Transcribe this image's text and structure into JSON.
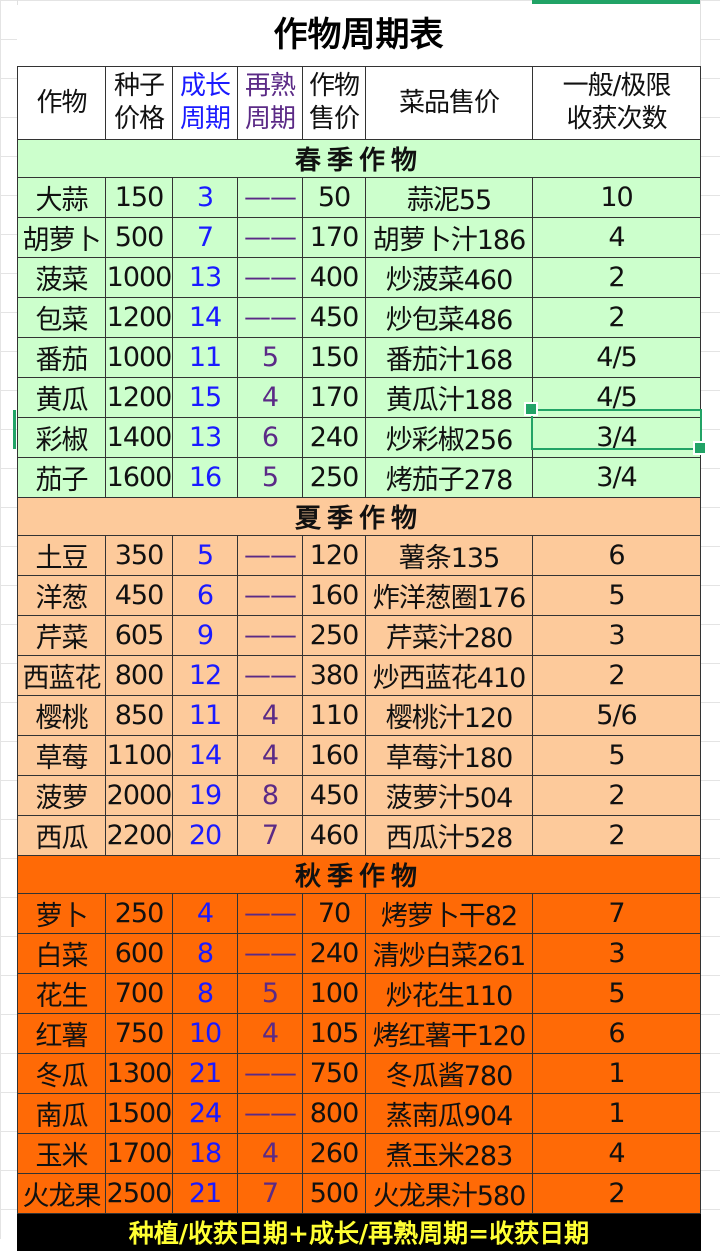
{
  "title": "作物周期表",
  "headers": [
    {
      "lines": [
        "作物"
      ],
      "color": "#111111"
    },
    {
      "lines": [
        "种子",
        "价格"
      ],
      "color": "#111111"
    },
    {
      "lines": [
        "成长",
        "周期"
      ],
      "color": "#1a1aff"
    },
    {
      "lines": [
        "再熟",
        "周期"
      ],
      "color": "#5b2a86"
    },
    {
      "lines": [
        "作物",
        "售价"
      ],
      "color": "#111111"
    },
    {
      "lines": [
        "菜品售价"
      ],
      "color": "#111111"
    },
    {
      "lines": [
        "一般/极限",
        "收获次数"
      ],
      "color": "#111111"
    }
  ],
  "seasons": [
    {
      "name": "春季作物",
      "color": "#ccffcc",
      "rows": [
        [
          "大蒜",
          "150",
          "3",
          "——",
          "50",
          "蒜泥55",
          "10"
        ],
        [
          "胡萝卜",
          "500",
          "7",
          "——",
          "170",
          "胡萝卜汁186",
          "4"
        ],
        [
          "菠菜",
          "1000",
          "13",
          "——",
          "400",
          "炒菠菜460",
          "2"
        ],
        [
          "包菜",
          "1200",
          "14",
          "——",
          "450",
          "炒包菜486",
          "2"
        ],
        [
          "番茄",
          "1000",
          "11",
          "5",
          "150",
          "番茄汁168",
          "4/5"
        ],
        [
          "黄瓜",
          "1200",
          "15",
          "4",
          "170",
          "黄瓜汁188",
          "4/5"
        ],
        [
          "彩椒",
          "1400",
          "13",
          "6",
          "240",
          "炒彩椒256",
          "3/4"
        ],
        [
          "茄子",
          "1600",
          "16",
          "5",
          "250",
          "烤茄子278",
          "3/4"
        ]
      ]
    },
    {
      "name": "夏季作物",
      "color": "#fdca9b",
      "rows": [
        [
          "土豆",
          "350",
          "5",
          "——",
          "120",
          "薯条135",
          "6"
        ],
        [
          "洋葱",
          "450",
          "6",
          "——",
          "160",
          "炸洋葱圈176",
          "5"
        ],
        [
          "芹菜",
          "605",
          "9",
          "——",
          "250",
          "芹菜汁280",
          "3"
        ],
        [
          "西蓝花",
          "800",
          "12",
          "——",
          "380",
          "炒西蓝花410",
          "2"
        ],
        [
          "樱桃",
          "850",
          "11",
          "4",
          "110",
          "樱桃汁120",
          "5/6"
        ],
        [
          "草莓",
          "1100",
          "14",
          "4",
          "160",
          "草莓汁180",
          "5"
        ],
        [
          "菠萝",
          "2000",
          "19",
          "8",
          "450",
          "菠萝汁504",
          "2"
        ],
        [
          "西瓜",
          "2200",
          "20",
          "7",
          "460",
          "西瓜汁528",
          "2"
        ]
      ]
    },
    {
      "name": "秋季作物",
      "color": "#ff6a06",
      "rows": [
        [
          "萝卜",
          "250",
          "4",
          "——",
          "70",
          "烤萝卜干82",
          "7"
        ],
        [
          "白菜",
          "600",
          "8",
          "——",
          "240",
          "清炒白菜261",
          "3"
        ],
        [
          "花生",
          "700",
          "8",
          "5",
          "100",
          "炒花生110",
          "5"
        ],
        [
          "红薯",
          "750",
          "10",
          "4",
          "105",
          "烤红薯干120",
          "6"
        ],
        [
          "冬瓜",
          "1300",
          "21",
          "——",
          "750",
          "冬瓜酱780",
          "1"
        ],
        [
          "南瓜",
          "1500",
          "24",
          "——",
          "800",
          "蒸南瓜904",
          "1"
        ],
        [
          "玉米",
          "1700",
          "18",
          "4",
          "260",
          "煮玉米283",
          "4"
        ],
        [
          "火龙果",
          "2500",
          "21",
          "7",
          "500",
          "火龙果汁580",
          "2"
        ]
      ]
    }
  ],
  "footer": "种植/收获日期+成长/再熟周期=收获日期",
  "selection": {
    "crop": "彩椒",
    "column": "一般/极限收获次数",
    "value": "3/4"
  },
  "accent_color": "#21a366"
}
